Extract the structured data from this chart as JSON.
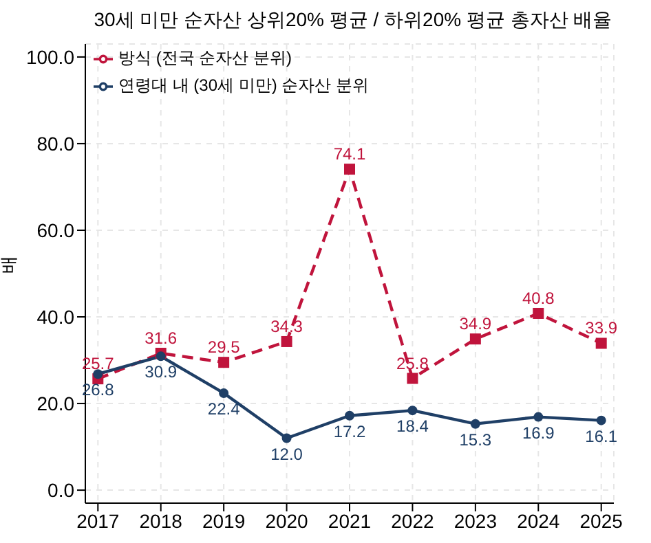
{
  "chart_data": {
    "type": "line",
    "title": "30세 미만 순자산 상위20% 평균 / 하위20% 평균 총자산 배율",
    "ylabel": "배",
    "x": [
      2017,
      2018,
      2019,
      2020,
      2021,
      2022,
      2023,
      2024,
      2025
    ],
    "xlim": [
      2016.8,
      2025.2
    ],
    "xticks": [
      2017,
      2018,
      2019,
      2020,
      2021,
      2022,
      2023,
      2024,
      2025
    ],
    "ylim": [
      -3,
      103
    ],
    "yticks": [
      {
        "value": 0,
        "label": "0.0"
      },
      {
        "value": 20,
        "label": "20.0"
      },
      {
        "value": 40,
        "label": "40.0"
      },
      {
        "value": 60,
        "label": "60.0"
      },
      {
        "value": 80,
        "label": "80.0"
      },
      {
        "value": 100,
        "label": "100.0"
      }
    ],
    "series": [
      {
        "name": "방식 (전국 순자산 분위)",
        "color": "#c0143c",
        "values": [
          25.7,
          31.6,
          29.5,
          34.3,
          74.1,
          25.8,
          34.9,
          40.8,
          33.9
        ],
        "value_labels": [
          "25.7",
          "31.6",
          "29.5",
          "34.3",
          "74.1",
          "25.8",
          "34.9",
          "40.8",
          "33.9"
        ],
        "marker": "square",
        "line_style": "dashed"
      },
      {
        "name": "연령대 내 (30세 미만) 순자산 분위",
        "color": "#1f3f66",
        "values": [
          26.8,
          30.9,
          22.4,
          12.0,
          17.2,
          18.4,
          15.3,
          16.9,
          16.1
        ],
        "value_labels": [
          "26.8",
          "30.9",
          "22.4",
          "12.0",
          "17.2",
          "18.4",
          "15.3",
          "16.9",
          "16.1"
        ],
        "marker": "circle",
        "line_style": "solid"
      }
    ],
    "grid": true,
    "legend": "top left"
  }
}
